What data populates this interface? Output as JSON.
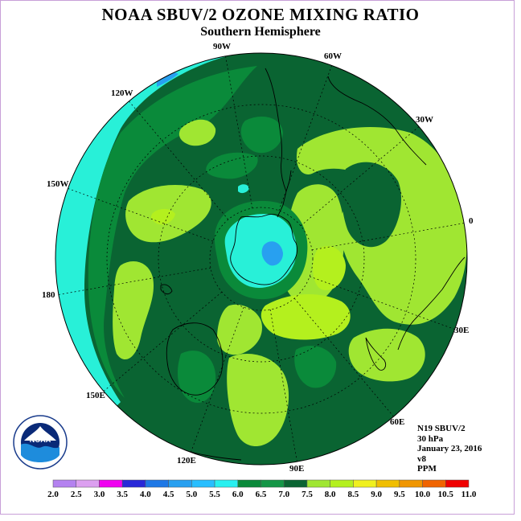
{
  "title": "NOAA SBUV/2 OZONE MIXING RATIO",
  "subtitle": "Southern Hemisphere",
  "longitude_labels": [
    "90W",
    "60W",
    "30W",
    "0",
    "30E",
    "60E",
    "90E",
    "120E",
    "150E",
    "180",
    "150W",
    "120W"
  ],
  "info": {
    "satellite": "N19 SBUV/2",
    "level": "30 hPa",
    "date": "January 23, 2016",
    "version": "v8",
    "units": "PPM"
  },
  "logo": {
    "text": "NOAA",
    "icon": "noaa-logo-icon"
  },
  "legend": {
    "ticks": [
      "2.0",
      "2.5",
      "3.0",
      "3.5",
      "4.0",
      "4.5",
      "5.0",
      "5.5",
      "6.0",
      "6.5",
      "7.0",
      "7.5",
      "8.0",
      "8.5",
      "9.0",
      "9.5",
      "10.0",
      "10.5",
      "11.0"
    ],
    "colors": [
      "#b482f0",
      "#dca0f0",
      "#f000f0",
      "#2828d8",
      "#1e78e6",
      "#28a0f0",
      "#28beff",
      "#28f0f0",
      "#0a8a3a",
      "#149646",
      "#0a6432",
      "#a0e632",
      "#b4f01e",
      "#f0f01e",
      "#f0be00",
      "#f09600",
      "#f06400",
      "#f00000",
      "#8c5a3c"
    ]
  },
  "colors": {
    "ocean_cyan": "#28f0d8",
    "frame": "#c8a0d8"
  }
}
